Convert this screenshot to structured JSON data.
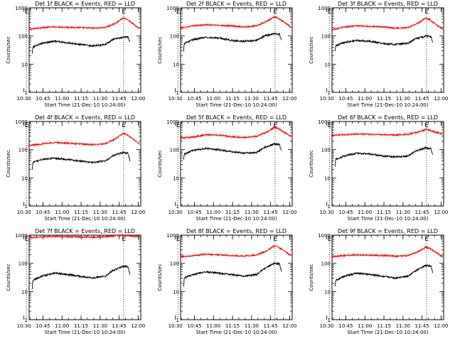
{
  "chart_data": {
    "type": "line",
    "ylabel": "Counts/sec",
    "xlabel": "Start Time (21-Dec-10 10:24:00)",
    "yscale": "log",
    "ylim": [
      1,
      1000
    ],
    "yticks": [
      1,
      10,
      100,
      1000
    ],
    "xlim_minutes": [
      10.1,
      98.0
    ],
    "x_ticks": [
      {
        "label": "10:30",
        "m": 6
      },
      {
        "label": "10:45",
        "m": 21
      },
      {
        "label": "11:00",
        "m": 36
      },
      {
        "label": "11:15",
        "m": 51
      },
      {
        "label": "11:30",
        "m": 66
      },
      {
        "label": "11:45",
        "m": 81
      },
      {
        "label": "12:00",
        "m": 96
      }
    ],
    "markers": [
      {
        "label": "E",
        "m": 8.0
      },
      {
        "label": "E",
        "m": 84.5
      }
    ],
    "series_colors": {
      "events": "#000000",
      "lld": "#ff0000"
    },
    "panels": [
      {
        "title": "Det 1f BLACK = Events, RED = LLD",
        "lld": [
          [
            10.1,
            170
          ],
          [
            20,
            200
          ],
          [
            30,
            210
          ],
          [
            40,
            205
          ],
          [
            50,
            200
          ],
          [
            60,
            190
          ],
          [
            70,
            200
          ],
          [
            78,
            280
          ],
          [
            84,
            430
          ],
          [
            87,
            400
          ],
          [
            93,
            250
          ],
          [
            97,
            180
          ]
        ],
        "events": [
          [
            12.5,
            25
          ],
          [
            13,
            40
          ],
          [
            20,
            55
          ],
          [
            30,
            65
          ],
          [
            40,
            58
          ],
          [
            50,
            50
          ],
          [
            60,
            45
          ],
          [
            70,
            50
          ],
          [
            76,
            75
          ],
          [
            84,
            90
          ],
          [
            88,
            92
          ],
          [
            89.5,
            60
          ]
        ]
      },
      {
        "title": "Det 2f BLACK = Events, RED = LLD",
        "lld": [
          [
            10.1,
            190
          ],
          [
            20,
            230
          ],
          [
            30,
            250
          ],
          [
            40,
            240
          ],
          [
            50,
            230
          ],
          [
            60,
            210
          ],
          [
            70,
            230
          ],
          [
            78,
            330
          ],
          [
            84,
            480
          ],
          [
            87,
            430
          ],
          [
            93,
            280
          ],
          [
            97,
            210
          ]
        ],
        "events": [
          [
            12.5,
            30
          ],
          [
            13,
            55
          ],
          [
            20,
            75
          ],
          [
            30,
            90
          ],
          [
            40,
            85
          ],
          [
            50,
            70
          ],
          [
            60,
            65
          ],
          [
            70,
            70
          ],
          [
            76,
            100
          ],
          [
            84,
            120
          ],
          [
            88,
            115
          ],
          [
            89.5,
            70
          ]
        ]
      },
      {
        "title": "Det 3f BLACK = Events, RED = LLD",
        "lld": [
          [
            10.1,
            170
          ],
          [
            20,
            210
          ],
          [
            30,
            230
          ],
          [
            40,
            220
          ],
          [
            50,
            210
          ],
          [
            60,
            190
          ],
          [
            70,
            200
          ],
          [
            78,
            290
          ],
          [
            84,
            430
          ],
          [
            87,
            380
          ],
          [
            93,
            240
          ],
          [
            97,
            180
          ]
        ],
        "events": [
          [
            12.5,
            30
          ],
          [
            13,
            45
          ],
          [
            20,
            60
          ],
          [
            30,
            70
          ],
          [
            40,
            65
          ],
          [
            50,
            55
          ],
          [
            60,
            50
          ],
          [
            70,
            55
          ],
          [
            76,
            80
          ],
          [
            84,
            100
          ],
          [
            88,
            95
          ],
          [
            89.5,
            60
          ]
        ]
      },
      {
        "title": "Det 4f BLACK = Events, RED = LLD",
        "lld": [
          [
            10.1,
            140
          ],
          [
            20,
            160
          ],
          [
            30,
            180
          ],
          [
            40,
            170
          ],
          [
            50,
            160
          ],
          [
            60,
            150
          ],
          [
            70,
            160
          ],
          [
            78,
            240
          ],
          [
            84,
            380
          ],
          [
            87,
            340
          ],
          [
            93,
            220
          ],
          [
            97,
            160
          ]
        ],
        "events": [
          [
            12.5,
            20
          ],
          [
            13,
            35
          ],
          [
            20,
            45
          ],
          [
            30,
            50
          ],
          [
            40,
            45
          ],
          [
            50,
            40
          ],
          [
            60,
            35
          ],
          [
            70,
            40
          ],
          [
            76,
            60
          ],
          [
            84,
            80
          ],
          [
            88,
            75
          ],
          [
            89.5,
            40
          ]
        ]
      },
      {
        "title": "Det 5f BLACK = Events, RED = LLD",
        "lld": [
          [
            10.1,
            260
          ],
          [
            20,
            280
          ],
          [
            30,
            340
          ],
          [
            40,
            330
          ],
          [
            50,
            290
          ],
          [
            60,
            270
          ],
          [
            70,
            300
          ],
          [
            78,
            420
          ],
          [
            84,
            620
          ],
          [
            87,
            560
          ],
          [
            93,
            380
          ],
          [
            97,
            300
          ]
        ],
        "events": [
          [
            12.5,
            45
          ],
          [
            13,
            70
          ],
          [
            20,
            95
          ],
          [
            30,
            110
          ],
          [
            40,
            100
          ],
          [
            50,
            85
          ],
          [
            60,
            75
          ],
          [
            70,
            80
          ],
          [
            76,
            120
          ],
          [
            84,
            160
          ],
          [
            88,
            150
          ],
          [
            89.5,
            90
          ]
        ]
      },
      {
        "title": "Det 6f BLACK = Events, RED = LLD",
        "lld": [
          [
            10.1,
            330
          ],
          [
            20,
            340
          ],
          [
            30,
            360
          ],
          [
            40,
            350
          ],
          [
            50,
            340
          ],
          [
            60,
            330
          ],
          [
            70,
            350
          ],
          [
            78,
            420
          ],
          [
            84,
            520
          ],
          [
            87,
            490
          ],
          [
            93,
            400
          ],
          [
            97,
            350
          ]
        ],
        "events": [
          [
            12.5,
            25
          ],
          [
            13,
            45
          ],
          [
            20,
            60
          ],
          [
            30,
            75
          ],
          [
            40,
            70
          ],
          [
            50,
            60
          ],
          [
            60,
            55
          ],
          [
            70,
            60
          ],
          [
            76,
            90
          ],
          [
            84,
            115
          ],
          [
            88,
            110
          ],
          [
            89.5,
            65
          ]
        ]
      },
      {
        "title": "Det 7f BLACK = Events, RED = LLD",
        "lld": [
          [
            10.1,
            820
          ],
          [
            20,
            870
          ],
          [
            30,
            900
          ],
          [
            40,
            880
          ],
          [
            50,
            860
          ],
          [
            60,
            850
          ],
          [
            70,
            880
          ],
          [
            78,
            950
          ],
          [
            84,
            1000
          ],
          [
            87,
            980
          ],
          [
            93,
            920
          ],
          [
            97,
            880
          ]
        ],
        "events": [
          [
            12.5,
            12
          ],
          [
            13,
            25
          ],
          [
            20,
            35
          ],
          [
            30,
            45
          ],
          [
            40,
            40
          ],
          [
            50,
            35
          ],
          [
            60,
            30
          ],
          [
            70,
            35
          ],
          [
            76,
            55
          ],
          [
            84,
            80
          ],
          [
            88,
            75
          ],
          [
            89.5,
            40
          ]
        ]
      },
      {
        "title": "Det 8f BLACK = Events, RED = LLD",
        "lld": [
          [
            10.1,
            170
          ],
          [
            20,
            190
          ],
          [
            30,
            210
          ],
          [
            40,
            200
          ],
          [
            50,
            190
          ],
          [
            60,
            180
          ],
          [
            70,
            200
          ],
          [
            78,
            280
          ],
          [
            84,
            420
          ],
          [
            87,
            380
          ],
          [
            93,
            250
          ],
          [
            97,
            190
          ]
        ],
        "events": [
          [
            12.5,
            15
          ],
          [
            13,
            30
          ],
          [
            20,
            40
          ],
          [
            30,
            50
          ],
          [
            40,
            45
          ],
          [
            50,
            40
          ],
          [
            60,
            35
          ],
          [
            70,
            40
          ],
          [
            76,
            65
          ],
          [
            84,
            100
          ],
          [
            88,
            95
          ],
          [
            89.5,
            55
          ]
        ]
      },
      {
        "title": "Det 9f BLACK = Events, RED = LLD",
        "lld": [
          [
            10.1,
            170
          ],
          [
            20,
            190
          ],
          [
            30,
            200
          ],
          [
            40,
            195
          ],
          [
            50,
            190
          ],
          [
            60,
            180
          ],
          [
            70,
            190
          ],
          [
            78,
            260
          ],
          [
            84,
            380
          ],
          [
            87,
            340
          ],
          [
            93,
            230
          ],
          [
            97,
            170
          ]
        ],
        "events": [
          [
            12.5,
            15
          ],
          [
            13,
            25
          ],
          [
            20,
            35
          ],
          [
            30,
            45
          ],
          [
            40,
            40
          ],
          [
            50,
            35
          ],
          [
            60,
            30
          ],
          [
            70,
            35
          ],
          [
            76,
            55
          ],
          [
            84,
            85
          ],
          [
            88,
            80
          ],
          [
            89.5,
            45
          ]
        ]
      }
    ]
  }
}
